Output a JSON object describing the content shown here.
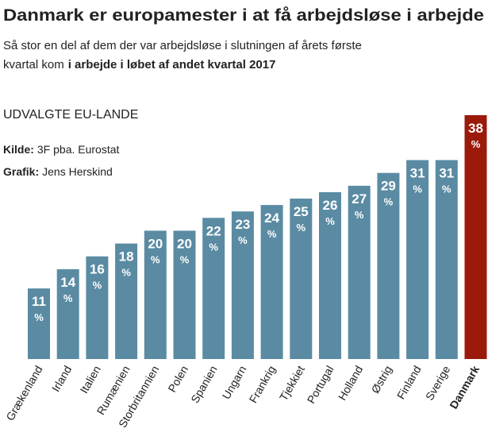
{
  "chart_data": {
    "type": "bar",
    "title": "Danmark er europamester i at få arbejdsløse i arbejde",
    "subtitle_line1": "Så stor en del af dem der var arbejdsløse i slutningen af årets første",
    "subtitle_line2": "kvartal kom",
    "subtitle_line2_bold": "i arbejde i løbet af andet kvartal 2017",
    "section_label": "UDVALGTE EU-LANDE",
    "source_label": "Kilde:",
    "source": "3F pba. Eurostat",
    "credit_label": "Grafik:",
    "credit": "Jens Herskind",
    "value_unit": "%",
    "categories": [
      "Grækenland",
      "Irland",
      "Italien",
      "Rumænien",
      "Storbritannien",
      "Polen",
      "Spanien",
      "Ungarn",
      "Frankrig",
      "Tjekkiet",
      "Portugal",
      "Holland",
      "Østrig",
      "Finland",
      "Sverige",
      "Danmark"
    ],
    "values": [
      11,
      14,
      16,
      18,
      20,
      20,
      22,
      23,
      24,
      25,
      26,
      27,
      29,
      31,
      31,
      38
    ],
    "colors": [
      "#5a8ba3",
      "#5a8ba3",
      "#5a8ba3",
      "#5a8ba3",
      "#5a8ba3",
      "#5a8ba3",
      "#5a8ba3",
      "#5a8ba3",
      "#5a8ba3",
      "#5a8ba3",
      "#5a8ba3",
      "#5a8ba3",
      "#5a8ba3",
      "#5a8ba3",
      "#5a8ba3",
      "#9b1a0c"
    ]
  }
}
